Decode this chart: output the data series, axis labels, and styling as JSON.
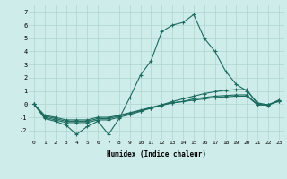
{
  "xlabel": "Humidex (Indice chaleur)",
  "xlim": [
    -0.5,
    23.5
  ],
  "ylim": [
    -2.7,
    7.5
  ],
  "bg_color": "#ceecea",
  "line_color": "#1a6b5e",
  "grid_color": "#aed4d0",
  "xticks": [
    0,
    1,
    2,
    3,
    4,
    5,
    6,
    7,
    8,
    9,
    10,
    11,
    12,
    13,
    14,
    15,
    16,
    17,
    18,
    19,
    20,
    21,
    22,
    23
  ],
  "yticks": [
    -2,
    -1,
    0,
    1,
    2,
    3,
    4,
    5,
    6,
    7
  ],
  "line1_x": [
    0,
    1,
    2,
    3,
    4,
    5,
    6,
    7,
    8,
    9,
    10,
    11,
    12,
    13,
    14,
    15,
    16,
    17,
    18,
    19,
    20,
    21,
    22,
    23
  ],
  "line1_y": [
    0.0,
    -1.1,
    -1.3,
    -1.6,
    -2.3,
    -1.7,
    -1.3,
    -2.3,
    -1.1,
    0.5,
    2.2,
    3.3,
    5.5,
    6.0,
    6.2,
    6.8,
    5.0,
    4.0,
    2.5,
    1.5,
    1.0,
    0.1,
    -0.05,
    0.3
  ],
  "line2_x": [
    0,
    1,
    2,
    3,
    4,
    5,
    6,
    7,
    8,
    9,
    10,
    11,
    12,
    13,
    14,
    15,
    16,
    17,
    18,
    19,
    20,
    21,
    22,
    23
  ],
  "line2_y": [
    0.0,
    -1.0,
    -1.2,
    -1.4,
    -1.4,
    -1.4,
    -1.2,
    -1.2,
    -1.0,
    -0.8,
    -0.55,
    -0.3,
    -0.05,
    0.2,
    0.4,
    0.6,
    0.8,
    0.95,
    1.05,
    1.1,
    1.1,
    0.0,
    -0.1,
    0.3
  ],
  "line3_x": [
    0,
    1,
    2,
    3,
    4,
    5,
    6,
    7,
    8,
    9,
    10,
    11,
    12,
    13,
    14,
    15,
    16,
    17,
    18,
    19,
    20,
    21,
    22,
    23
  ],
  "line3_y": [
    0.0,
    -0.9,
    -1.1,
    -1.3,
    -1.3,
    -1.3,
    -1.1,
    -1.1,
    -0.9,
    -0.7,
    -0.5,
    -0.3,
    -0.1,
    0.1,
    0.2,
    0.4,
    0.5,
    0.6,
    0.65,
    0.7,
    0.7,
    -0.05,
    -0.05,
    0.25
  ],
  "line4_x": [
    0,
    1,
    2,
    3,
    4,
    5,
    6,
    7,
    8,
    9,
    10,
    11,
    12,
    13,
    14,
    15,
    16,
    17,
    18,
    19,
    20,
    21,
    22,
    23
  ],
  "line4_y": [
    0.0,
    -0.85,
    -1.0,
    -1.2,
    -1.2,
    -1.2,
    -1.0,
    -1.0,
    -0.85,
    -0.65,
    -0.45,
    -0.25,
    -0.05,
    0.1,
    0.2,
    0.3,
    0.4,
    0.5,
    0.55,
    0.6,
    0.6,
    -0.05,
    -0.05,
    0.2
  ]
}
